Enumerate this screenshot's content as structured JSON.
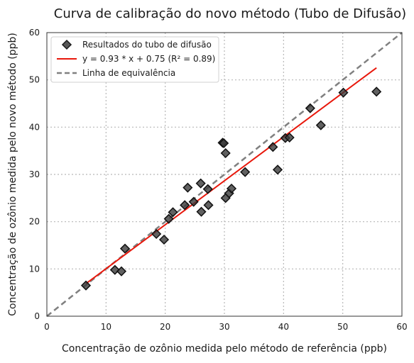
{
  "chart_data": {
    "type": "scatter",
    "title": "Curva de calibração do novo método (Tubo de Difusão)",
    "xlabel": "Concentração de ozônio medida pelo método de referência (ppb)",
    "ylabel": "Concentração de ozônio medida pelo novo método (ppb)",
    "xlim": [
      0,
      60
    ],
    "ylim": [
      0,
      60
    ],
    "xticks": [
      0,
      10,
      20,
      30,
      40,
      50,
      60
    ],
    "yticks": [
      0,
      10,
      20,
      30,
      40,
      50,
      60
    ],
    "grid": true,
    "legend_position": "top-left",
    "legend": [
      "Resultados do tubo de difusão",
      "y = 0.93 * x + 0.75 (R² = 0.89)",
      "Linha de equivalência"
    ],
    "series": [
      {
        "type": "scatter",
        "marker": "diamond",
        "color": "#333333",
        "points": [
          [
            6.6,
            6.5
          ],
          [
            11.5,
            9.8
          ],
          [
            12.6,
            9.5
          ],
          [
            13.2,
            14.3
          ],
          [
            18.5,
            17.4
          ],
          [
            19.8,
            16.2
          ],
          [
            20.6,
            20.6
          ],
          [
            21.3,
            22.0
          ],
          [
            23.3,
            23.5
          ],
          [
            23.8,
            27.2
          ],
          [
            24.8,
            24.2
          ],
          [
            26.0,
            28.1
          ],
          [
            26.1,
            22.1
          ],
          [
            27.3,
            23.5
          ],
          [
            27.2,
            26.9
          ],
          [
            29.7,
            36.7
          ],
          [
            29.9,
            36.6
          ],
          [
            30.2,
            34.5
          ],
          [
            30.2,
            25.0
          ],
          [
            30.8,
            26.0
          ],
          [
            31.2,
            27.0
          ],
          [
            33.5,
            30.5
          ],
          [
            38.2,
            35.8
          ],
          [
            39.0,
            31.0
          ],
          [
            40.3,
            37.7
          ],
          [
            41.0,
            37.8
          ],
          [
            44.5,
            44.0
          ],
          [
            46.3,
            40.4
          ],
          [
            50.1,
            47.3
          ],
          [
            55.7,
            47.5
          ]
        ]
      },
      {
        "type": "line",
        "color": "#e8180c",
        "slope": 0.93,
        "intercept": 0.75,
        "x_range": [
          6.6,
          55.7
        ]
      },
      {
        "type": "line",
        "color": "#808080",
        "dashed": true,
        "slope": 1,
        "intercept": 0,
        "x_range": [
          0,
          60
        ]
      }
    ]
  }
}
